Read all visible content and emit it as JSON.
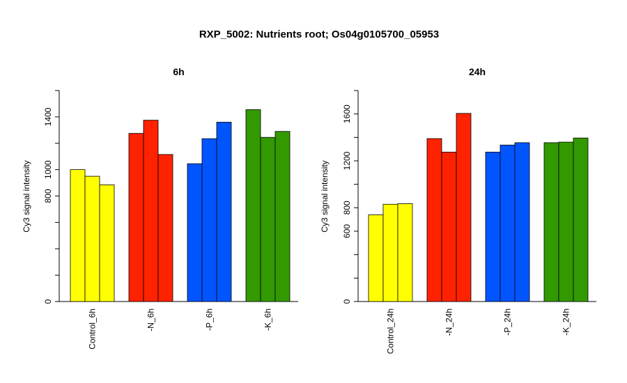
{
  "title": "RXP_5002: Nutrients root; Os04g0105700_05953",
  "chart_data": [
    {
      "type": "bar",
      "title": "6h",
      "ylabel": "Cy3 signal intensity",
      "xlabel": "",
      "ylim": [
        0,
        1600
      ],
      "yticks": [
        0,
        800,
        1000,
        1400
      ],
      "grid": false,
      "groups": [
        {
          "label": "Control_6h",
          "color": "#ffff00",
          "values": [
            1000,
            950,
            885
          ]
        },
        {
          "label": "-N_6h",
          "color": "#ff2200",
          "values": [
            1275,
            1375,
            1115
          ]
        },
        {
          "label": "-P_6h",
          "color": "#0055ff",
          "values": [
            1045,
            1235,
            1360
          ]
        },
        {
          "label": "-K_6h",
          "color": "#339900",
          "values": [
            1455,
            1245,
            1290
          ]
        }
      ]
    },
    {
      "type": "bar",
      "title": "24h",
      "ylabel": "Cy3 signal intensity",
      "xlabel": "",
      "ylim": [
        0,
        1800
      ],
      "yticks": [
        0,
        600,
        800,
        1200,
        1600
      ],
      "grid": false,
      "groups": [
        {
          "label": "Control_24h",
          "color": "#ffff00",
          "values": [
            740,
            830,
            835
          ]
        },
        {
          "label": "-N_24h",
          "color": "#ff2200",
          "values": [
            1390,
            1275,
            1605
          ]
        },
        {
          "label": "-P_24h",
          "color": "#0055ff",
          "values": [
            1275,
            1335,
            1355
          ]
        },
        {
          "label": "-K_24h",
          "color": "#339900",
          "values": [
            1355,
            1360,
            1395
          ]
        }
      ]
    }
  ]
}
